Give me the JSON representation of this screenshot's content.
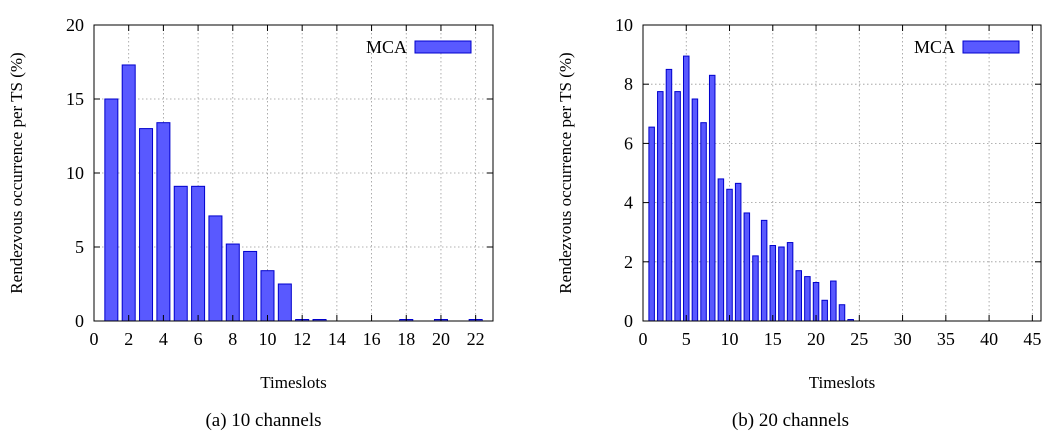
{
  "chart_data": [
    {
      "type": "bar",
      "xlabel": "Timeslots",
      "ylabel": "Rendezvous occurrence per TS (%)",
      "caption": "(a) 10 channels",
      "xlim": [
        0,
        23
      ],
      "ylim": [
        0,
        20
      ],
      "xticks": [
        0,
        2,
        4,
        6,
        8,
        10,
        12,
        14,
        16,
        18,
        20,
        22
      ],
      "yticks": [
        0,
        5,
        10,
        15,
        20
      ],
      "grid": true,
      "legend_position": "top-right",
      "bar_color": "#5959ff",
      "series": [
        {
          "name": "MCA",
          "x": [
            1,
            2,
            3,
            4,
            5,
            6,
            7,
            8,
            9,
            10,
            11,
            12,
            13,
            18,
            20,
            22
          ],
          "values": [
            15.0,
            17.3,
            13.0,
            13.4,
            9.1,
            9.1,
            7.1,
            5.2,
            4.7,
            3.4,
            2.5,
            0.1,
            0.1,
            0.05,
            0.05,
            0.1
          ]
        }
      ]
    },
    {
      "type": "bar",
      "xlabel": "Timeslots",
      "ylabel": "Rendezvous occurrence per TS (%)",
      "caption": "(b) 20 channels",
      "xlim": [
        0,
        46
      ],
      "ylim": [
        0,
        10
      ],
      "xticks": [
        0,
        5,
        10,
        15,
        20,
        25,
        30,
        35,
        40,
        45
      ],
      "yticks": [
        0,
        2,
        4,
        6,
        8,
        10
      ],
      "grid": true,
      "legend_position": "top-right",
      "bar_color": "#5959ff",
      "series": [
        {
          "name": "MCA",
          "x": [
            1,
            2,
            3,
            4,
            5,
            6,
            7,
            8,
            9,
            10,
            11,
            12,
            13,
            14,
            15,
            16,
            17,
            18,
            19,
            20,
            21,
            22,
            23,
            24
          ],
          "values": [
            6.55,
            7.75,
            8.5,
            7.75,
            8.95,
            7.5,
            6.7,
            8.3,
            4.8,
            4.45,
            4.65,
            3.65,
            2.2,
            3.4,
            2.55,
            2.5,
            2.65,
            1.7,
            1.5,
            1.3,
            0.7,
            1.35,
            0.55,
            0.05
          ]
        }
      ]
    }
  ]
}
